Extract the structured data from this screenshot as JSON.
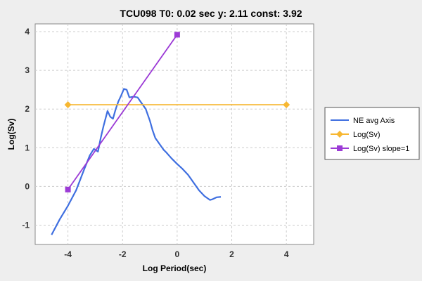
{
  "chart_data": {
    "type": "line",
    "title": "TCU098 T0: 0.02 sec  y: 2.11 const: 3.92",
    "xlabel": "Log Period(sec)",
    "ylabel": "Log(Sv)",
    "xlim": [
      -5.2,
      5.0
    ],
    "ylim": [
      -1.5,
      4.2
    ],
    "xticks": [
      -4,
      -2,
      0,
      2,
      4
    ],
    "yticks": [
      -1,
      0,
      1,
      2,
      3,
      4
    ],
    "xtick_labels": [
      "-4",
      "-2",
      "0",
      "2",
      "4"
    ],
    "ytick_labels": [
      "-1",
      "0",
      "1",
      "2",
      "3",
      "4"
    ],
    "grid": true,
    "legend_position": "right",
    "series": [
      {
        "name": "NE avg Axis",
        "color": "#3f6fe0",
        "marker": "none",
        "x": [
          -4.6,
          -4.3,
          -4.0,
          -3.7,
          -3.4,
          -3.2,
          -3.05,
          -2.9,
          -2.8,
          -2.7,
          -2.55,
          -2.45,
          -2.35,
          -2.25,
          -2.15,
          -2.05,
          -1.95,
          -1.85,
          -1.75,
          -1.6,
          -1.45,
          -1.3,
          -1.15,
          -1.0,
          -0.9,
          -0.8,
          -0.7,
          -0.6,
          -0.5,
          -0.4,
          -0.3,
          -0.2,
          -0.1,
          0.0,
          0.2,
          0.4,
          0.6,
          0.8,
          1.0,
          1.1,
          1.2,
          1.3,
          1.45,
          1.6
        ],
        "y": [
          -1.25,
          -0.85,
          -0.5,
          -0.1,
          0.45,
          0.8,
          0.97,
          0.9,
          1.25,
          1.55,
          1.95,
          1.8,
          1.75,
          2.0,
          2.2,
          2.35,
          2.52,
          2.5,
          2.3,
          2.32,
          2.3,
          2.15,
          2.0,
          1.7,
          1.45,
          1.25,
          1.15,
          1.05,
          0.95,
          0.88,
          0.8,
          0.72,
          0.65,
          0.58,
          0.45,
          0.3,
          0.1,
          -0.1,
          -0.25,
          -0.3,
          -0.35,
          -0.33,
          -0.28,
          -0.27
        ]
      },
      {
        "name": "Log(Sv)",
        "color": "#f7b731",
        "marker": "diamond",
        "x": [
          -4,
          4
        ],
        "y": [
          2.11,
          2.11
        ]
      },
      {
        "name": "Log(Sv) slope=1",
        "color": "#9c3bd6",
        "marker": "square",
        "x": [
          -4,
          0
        ],
        "y": [
          -0.08,
          3.92
        ]
      }
    ]
  }
}
